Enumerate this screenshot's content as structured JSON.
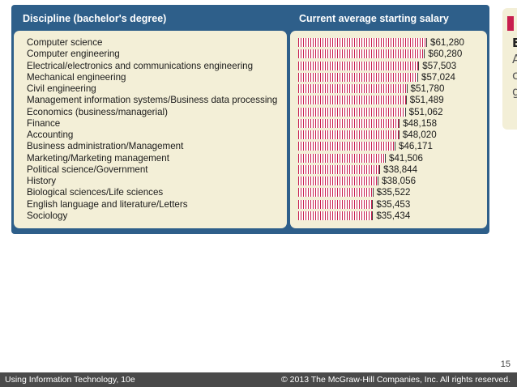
{
  "chart_data": {
    "type": "bar",
    "orientation": "horizontal",
    "xlabel": "Discipline (bachelor's degree)",
    "ylabel": "Current average starting salary",
    "categories": [
      "Computer science",
      "Computer engineering",
      "Electrical/electronics and communications engineering",
      "Mechanical engineering",
      "Civil engineering",
      "Management information systems/Business data processing",
      "Economics (business/managerial)",
      "Finance",
      "Accounting",
      "Business administration/Management",
      "Marketing/Marketing management",
      "Political science/Government",
      "History",
      "Biological sciences/Life sciences",
      "English language and literature/Letters",
      "Sociology"
    ],
    "values": [
      61280,
      60280,
      57503,
      57024,
      51780,
      51489,
      51062,
      48158,
      48020,
      46171,
      41506,
      38844,
      38056,
      35522,
      35453,
      35434
    ],
    "value_labels": [
      "$61,280",
      "$60,280",
      "$57,503",
      "$57,024",
      "$51,780",
      "$51,489",
      "$51,062",
      "$48,158",
      "$48,020",
      "$46,171",
      "$41,506",
      "$38,844",
      "$38,056",
      "$35,522",
      "$35,453",
      "$35,434"
    ],
    "xlim": [
      0,
      61280
    ],
    "bar_color": "#c81e4e"
  },
  "side_partial_text": [
    "E",
    "A",
    "c",
    "g"
  ],
  "footer": {
    "left": "Using Information Technology, 10e",
    "right": "© 2013 The McGraw-Hill Companies, Inc. All rights reserved.",
    "page": "15"
  },
  "colors": {
    "panel": "#2e5f8a",
    "box": "#f3efd7",
    "bar": "#c81e4e",
    "footer": "#4a4a4a"
  }
}
